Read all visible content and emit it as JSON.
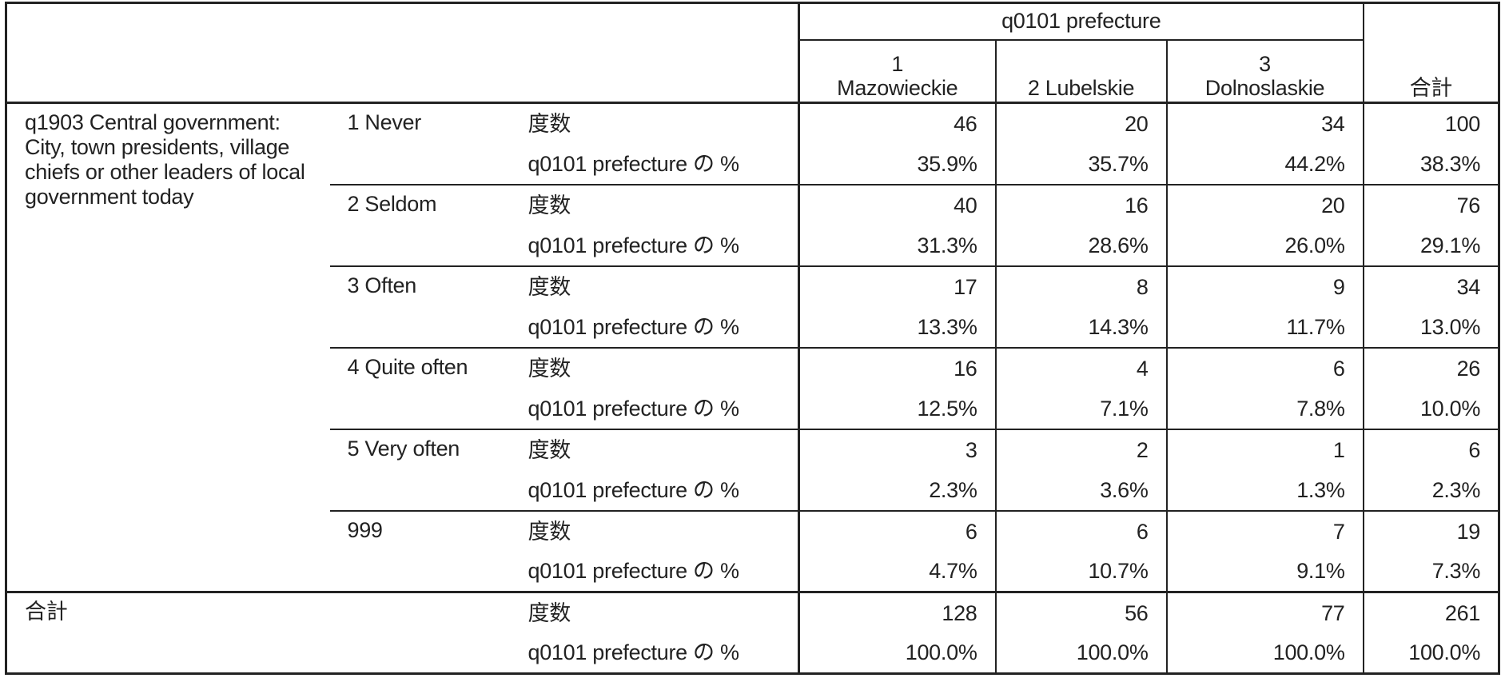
{
  "table": {
    "column_group": "q0101 prefecture",
    "columns": [
      [
        "1",
        "Mazowieckie"
      ],
      [
        "2 Lubelskie"
      ],
      [
        "3",
        "Dolnoslaskie"
      ],
      [
        "合計"
      ]
    ],
    "row_variable": "q1903 Central government: City, town presidents, village chiefs or other leaders of local government today",
    "groups": [
      {
        "label": "1 Never",
        "rows": [
          {
            "stat": "度数",
            "cells": [
              "46",
              "20",
              "34",
              "100"
            ]
          },
          {
            "stat": "q0101 prefecture の %",
            "cells": [
              "35.9%",
              "35.7%",
              "44.2%",
              "38.3%"
            ]
          }
        ]
      },
      {
        "label": "2 Seldom",
        "rows": [
          {
            "stat": "度数",
            "cells": [
              "40",
              "16",
              "20",
              "76"
            ]
          },
          {
            "stat": "q0101 prefecture の %",
            "cells": [
              "31.3%",
              "28.6%",
              "26.0%",
              "29.1%"
            ]
          }
        ]
      },
      {
        "label": "3 Often",
        "rows": [
          {
            "stat": "度数",
            "cells": [
              "17",
              "8",
              "9",
              "34"
            ]
          },
          {
            "stat": "q0101 prefecture の %",
            "cells": [
              "13.3%",
              "14.3%",
              "11.7%",
              "13.0%"
            ]
          }
        ]
      },
      {
        "label": "4 Quite often",
        "rows": [
          {
            "stat": "度数",
            "cells": [
              "16",
              "4",
              "6",
              "26"
            ]
          },
          {
            "stat": "q0101 prefecture の %",
            "cells": [
              "12.5%",
              "7.1%",
              "7.8%",
              "10.0%"
            ]
          }
        ]
      },
      {
        "label": "5 Very often",
        "rows": [
          {
            "stat": "度数",
            "cells": [
              "3",
              "2",
              "1",
              "6"
            ]
          },
          {
            "stat": "q0101 prefecture の %",
            "cells": [
              "2.3%",
              "3.6%",
              "1.3%",
              "2.3%"
            ]
          }
        ]
      },
      {
        "label": "999",
        "rows": [
          {
            "stat": "度数",
            "cells": [
              "6",
              "6",
              "7",
              "19"
            ]
          },
          {
            "stat": "q0101 prefecture の %",
            "cells": [
              "4.7%",
              "10.7%",
              "9.1%",
              "7.3%"
            ]
          }
        ]
      }
    ],
    "total": {
      "label": "合計",
      "rows": [
        {
          "stat": "度数",
          "cells": [
            "128",
            "56",
            "77",
            "261"
          ]
        },
        {
          "stat": "q0101 prefecture の %",
          "cells": [
            "100.0%",
            "100.0%",
            "100.0%",
            "100.0%"
          ]
        }
      ]
    }
  }
}
